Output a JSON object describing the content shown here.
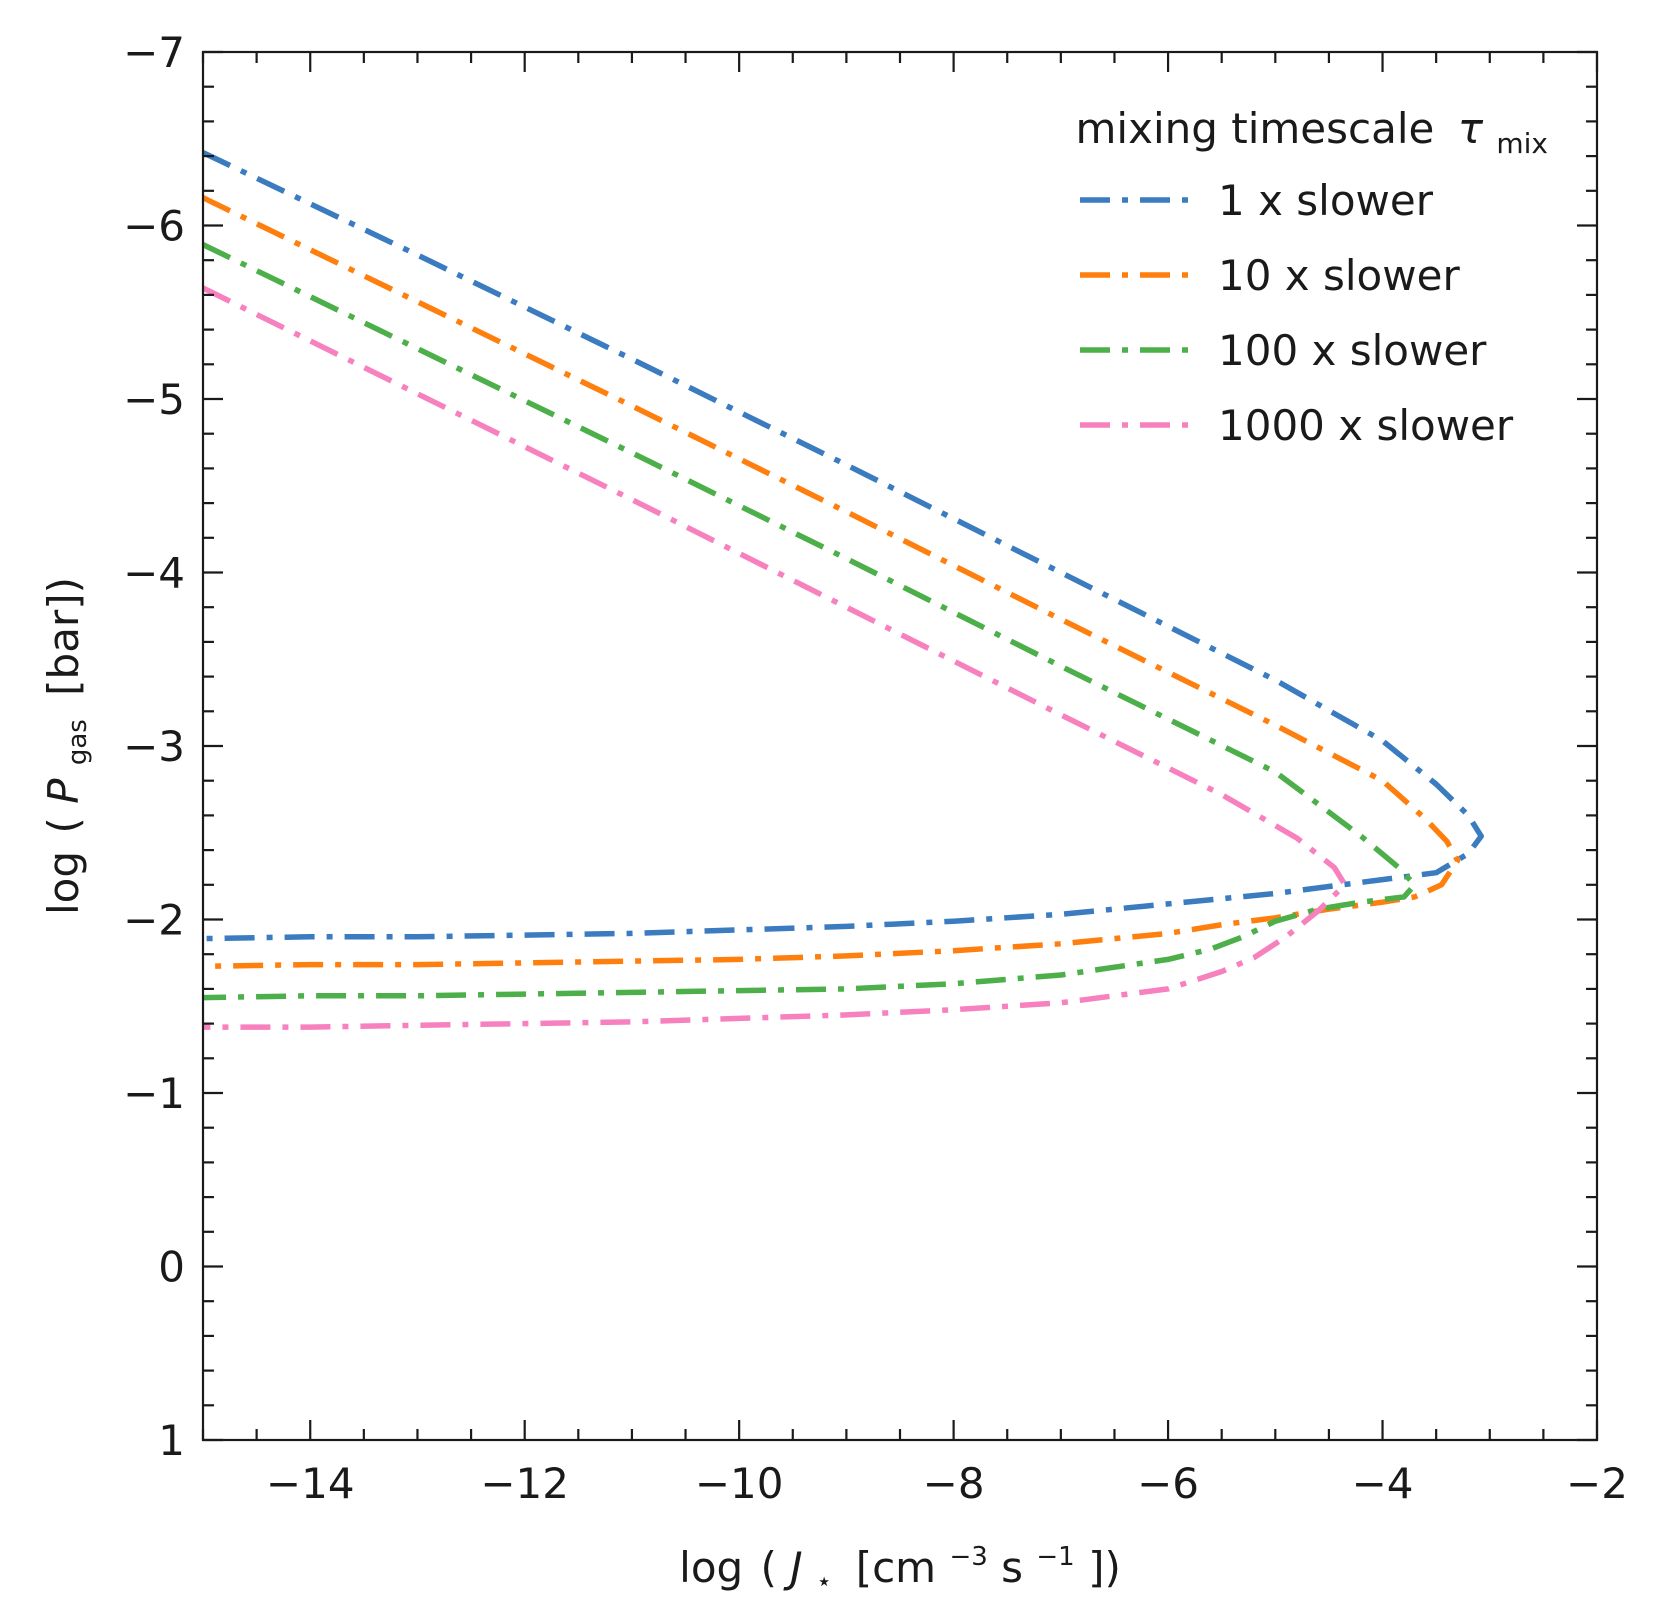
{
  "chart_data": {
    "type": "line",
    "xlabel": "log ( J⋆ [cm⁻³s⁻¹])",
    "xlabel_parts": {
      "prefix": "log",
      "paren_open": "(",
      "var": "J",
      "sub": "⋆",
      "unit_open": "[cm",
      "exp1": "−3",
      "mid": "s",
      "exp2": "−1",
      "unit_close": "])"
    },
    "ylabel": "log ( Pgas [bar])",
    "ylabel_parts": {
      "prefix": "log",
      "paren_open": "(",
      "var": "P",
      "sub": "gas",
      "unit": "[bar])"
    },
    "xlim": [
      -15.0,
      -2.0
    ],
    "ylim": [
      1.0,
      -7.0
    ],
    "y_inverted": true,
    "xticks": [
      -14,
      -12,
      -10,
      -8,
      -6,
      -4,
      -2
    ],
    "xtick_labels": [
      "−14",
      "−12",
      "−10",
      "−8",
      "−6",
      "−4",
      "−2"
    ],
    "yticks": [
      -7,
      -6,
      -5,
      -4,
      -3,
      -2,
      -1,
      0,
      1
    ],
    "ytick_labels": [
      "−7",
      "−6",
      "−5",
      "−4",
      "−3",
      "−2",
      "−1",
      "0",
      "1"
    ],
    "x_minor_step": 0.5,
    "y_minor_step": 0.2,
    "grid": false,
    "legend": {
      "title": "mixing timescale τmix",
      "title_text": "mixing timescale",
      "title_symbol": "τ",
      "title_sub": "mix",
      "placement": "top-right"
    },
    "series": [
      {
        "name": "1 x slower",
        "color": "#3b7bbf",
        "linestyle": "dash-dot",
        "points": [
          [
            -15.0,
            -6.42
          ],
          [
            -13.0,
            -5.83
          ],
          [
            -11.0,
            -5.23
          ],
          [
            -9.0,
            -4.62
          ],
          [
            -7.0,
            -4.0
          ],
          [
            -5.0,
            -3.38
          ],
          [
            -4.0,
            -3.03
          ],
          [
            -3.5,
            -2.78
          ],
          [
            -3.2,
            -2.6
          ],
          [
            -3.08,
            -2.48
          ],
          [
            -3.2,
            -2.38
          ],
          [
            -3.5,
            -2.27
          ],
          [
            -4.0,
            -2.23
          ],
          [
            -4.5,
            -2.19
          ],
          [
            -5.0,
            -2.15
          ],
          [
            -5.5,
            -2.12
          ],
          [
            -6.0,
            -2.09
          ],
          [
            -7.0,
            -2.03
          ],
          [
            -8.0,
            -1.99
          ],
          [
            -9.0,
            -1.96
          ],
          [
            -10.0,
            -1.94
          ],
          [
            -11.0,
            -1.92
          ],
          [
            -12.0,
            -1.91
          ],
          [
            -13.0,
            -1.9
          ],
          [
            -14.0,
            -1.9
          ],
          [
            -15.0,
            -1.89
          ]
        ]
      },
      {
        "name": "10 x slower",
        "color": "#ff7f0e",
        "linestyle": "dash-dot",
        "points": [
          [
            -15.0,
            -6.16
          ],
          [
            -13.0,
            -5.56
          ],
          [
            -11.0,
            -4.96
          ],
          [
            -9.0,
            -4.35
          ],
          [
            -7.0,
            -3.73
          ],
          [
            -5.0,
            -3.12
          ],
          [
            -4.0,
            -2.8
          ],
          [
            -3.6,
            -2.58
          ],
          [
            -3.4,
            -2.45
          ],
          [
            -3.3,
            -2.34
          ],
          [
            -3.45,
            -2.2
          ],
          [
            -3.7,
            -2.13
          ],
          [
            -4.0,
            -2.1
          ],
          [
            -4.5,
            -2.06
          ],
          [
            -5.0,
            -2.01
          ],
          [
            -5.5,
            -1.97
          ],
          [
            -6.0,
            -1.92
          ],
          [
            -7.0,
            -1.86
          ],
          [
            -8.0,
            -1.82
          ],
          [
            -9.0,
            -1.79
          ],
          [
            -10.0,
            -1.77
          ],
          [
            -11.0,
            -1.76
          ],
          [
            -12.0,
            -1.75
          ],
          [
            -13.0,
            -1.74
          ],
          [
            -14.0,
            -1.74
          ],
          [
            -15.0,
            -1.73
          ]
        ]
      },
      {
        "name": "100 x slower",
        "color": "#4daf4a",
        "linestyle": "dash-dot",
        "points": [
          [
            -15.0,
            -5.89
          ],
          [
            -13.0,
            -5.29
          ],
          [
            -11.0,
            -4.69
          ],
          [
            -9.0,
            -4.08
          ],
          [
            -7.0,
            -3.46
          ],
          [
            -5.0,
            -2.85
          ],
          [
            -4.2,
            -2.48
          ],
          [
            -3.85,
            -2.3
          ],
          [
            -3.7,
            -2.2
          ],
          [
            -3.8,
            -2.13
          ],
          [
            -4.2,
            -2.1
          ],
          [
            -4.6,
            -2.06
          ],
          [
            -5.0,
            -1.99
          ],
          [
            -5.3,
            -1.9
          ],
          [
            -5.6,
            -1.83
          ],
          [
            -6.0,
            -1.77
          ],
          [
            -7.0,
            -1.68
          ],
          [
            -8.0,
            -1.63
          ],
          [
            -9.0,
            -1.6
          ],
          [
            -10.0,
            -1.59
          ],
          [
            -11.0,
            -1.58
          ],
          [
            -12.0,
            -1.57
          ],
          [
            -13.0,
            -1.56
          ],
          [
            -14.0,
            -1.56
          ],
          [
            -15.0,
            -1.55
          ]
        ]
      },
      {
        "name": "1000 x slower",
        "color": "#f781bf",
        "linestyle": "dash-dot",
        "points": [
          [
            -15.0,
            -5.64
          ],
          [
            -13.0,
            -5.03
          ],
          [
            -11.0,
            -4.42
          ],
          [
            -9.0,
            -3.8
          ],
          [
            -7.0,
            -3.18
          ],
          [
            -5.5,
            -2.72
          ],
          [
            -4.8,
            -2.47
          ],
          [
            -4.45,
            -2.3
          ],
          [
            -4.35,
            -2.2
          ],
          [
            -4.6,
            -2.05
          ],
          [
            -4.9,
            -1.9
          ],
          [
            -5.2,
            -1.78
          ],
          [
            -5.5,
            -1.7
          ],
          [
            -6.0,
            -1.6
          ],
          [
            -6.5,
            -1.56
          ],
          [
            -7.0,
            -1.52
          ],
          [
            -8.0,
            -1.48
          ],
          [
            -9.0,
            -1.45
          ],
          [
            -10.0,
            -1.43
          ],
          [
            -11.0,
            -1.41
          ],
          [
            -12.0,
            -1.4
          ],
          [
            -13.0,
            -1.39
          ],
          [
            -14.0,
            -1.38
          ],
          [
            -15.0,
            -1.38
          ]
        ]
      }
    ]
  }
}
